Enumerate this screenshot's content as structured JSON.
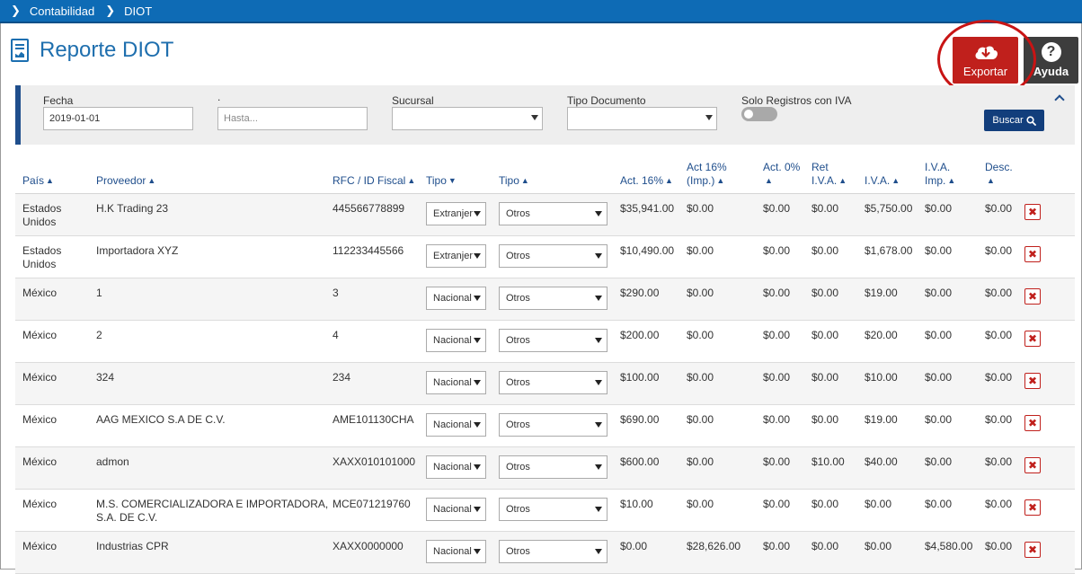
{
  "breadcrumb": [
    "Contabilidad",
    "DIOT"
  ],
  "page_title": "Reporte DIOT",
  "actions": {
    "export_label": "Exportar",
    "help_label": "Ayuda",
    "help_symbol": "?"
  },
  "filters": {
    "fecha_label": "Fecha",
    "fecha_value": "2019-01-01",
    "hasta_label": ".",
    "hasta_placeholder": "Hasta...",
    "sucursal_label": "Sucursal",
    "sucursal_value": "",
    "tipo_documento_label": "Tipo Documento",
    "tipo_documento_value": "",
    "solo_iva_label": "Solo Registros con IVA",
    "solo_iva_on": false,
    "buscar_label": "Buscar"
  },
  "columns": {
    "pais": "País",
    "proveedor": "Proveedor",
    "rfc": "RFC / ID Fiscal",
    "tipo1": "Tipo",
    "tipo2": "Tipo",
    "act16": "Act. 16%",
    "act16imp_1": "Act 16%",
    "act16imp_2": "(Imp.)",
    "act0": "Act. 0%",
    "retiva_1": "Ret",
    "retiva_2": "I.V.A.",
    "iva": "I.V.A.",
    "ivaimp_1": "I.V.A.",
    "ivaimp_2": "Imp.",
    "desc": "Desc."
  },
  "rows": [
    {
      "pais_1": "Estados",
      "pais_2": "Unidos",
      "proveedor_1": "H.K Trading 23",
      "proveedor_2": "",
      "rfc": "445566778899",
      "tipo1": "Extranjero",
      "tipo2": "Otros",
      "act16": "$35,941.00",
      "act16imp": "$0.00",
      "act0": "$0.00",
      "retiva": "$0.00",
      "iva": "$5,750.00",
      "ivaimp": "$0.00",
      "desc": "$0.00"
    },
    {
      "pais_1": "Estados",
      "pais_2": "Unidos",
      "proveedor_1": "Importadora XYZ",
      "proveedor_2": "",
      "rfc": "112233445566",
      "tipo1": "Extranjero",
      "tipo2": "Otros",
      "act16": "$10,490.00",
      "act16imp": "$0.00",
      "act0": "$0.00",
      "retiva": "$0.00",
      "iva": "$1,678.00",
      "ivaimp": "$0.00",
      "desc": "$0.00"
    },
    {
      "pais_1": "México",
      "pais_2": "",
      "proveedor_1": "1",
      "proveedor_2": "",
      "rfc": "3",
      "tipo1": "Nacional",
      "tipo2": "Otros",
      "act16": "$290.00",
      "act16imp": "$0.00",
      "act0": "$0.00",
      "retiva": "$0.00",
      "iva": "$19.00",
      "ivaimp": "$0.00",
      "desc": "$0.00"
    },
    {
      "pais_1": "México",
      "pais_2": "",
      "proveedor_1": "2",
      "proveedor_2": "",
      "rfc": "4",
      "tipo1": "Nacional",
      "tipo2": "Otros",
      "act16": "$200.00",
      "act16imp": "$0.00",
      "act0": "$0.00",
      "retiva": "$0.00",
      "iva": "$20.00",
      "ivaimp": "$0.00",
      "desc": "$0.00"
    },
    {
      "pais_1": "México",
      "pais_2": "",
      "proveedor_1": "324",
      "proveedor_2": "",
      "rfc": "234",
      "tipo1": "Nacional",
      "tipo2": "Otros",
      "act16": "$100.00",
      "act16imp": "$0.00",
      "act0": "$0.00",
      "retiva": "$0.00",
      "iva": "$10.00",
      "ivaimp": "$0.00",
      "desc": "$0.00"
    },
    {
      "pais_1": "México",
      "pais_2": "",
      "proveedor_1": "AAG MEXICO S.A DE C.V.",
      "proveedor_2": "",
      "rfc": "AME101130CHA",
      "tipo1": "Nacional",
      "tipo2": "Otros",
      "act16": "$690.00",
      "act16imp": "$0.00",
      "act0": "$0.00",
      "retiva": "$0.00",
      "iva": "$19.00",
      "ivaimp": "$0.00",
      "desc": "$0.00"
    },
    {
      "pais_1": "México",
      "pais_2": "",
      "proveedor_1": "admon",
      "proveedor_2": "",
      "rfc": "XAXX010101000",
      "tipo1": "Nacional",
      "tipo2": "Otros",
      "act16": "$600.00",
      "act16imp": "$0.00",
      "act0": "$0.00",
      "retiva": "$10.00",
      "iva": "$40.00",
      "ivaimp": "$0.00",
      "desc": "$0.00"
    },
    {
      "pais_1": "México",
      "pais_2": "",
      "proveedor_1": "M.S. COMERCIALIZADORA E IMPORTADORA,",
      "proveedor_2": "S.A. DE C.V.",
      "rfc": "MCE071219760",
      "tipo1": "Nacional",
      "tipo2": "Otros",
      "act16": "$10.00",
      "act16imp": "$0.00",
      "act0": "$0.00",
      "retiva": "$0.00",
      "iva": "$0.00",
      "ivaimp": "$0.00",
      "desc": "$0.00"
    },
    {
      "pais_1": "México",
      "pais_2": "",
      "proveedor_1": "Industrias CPR",
      "proveedor_2": "",
      "rfc": "XAXX0000000",
      "tipo1": "Nacional",
      "tipo2": "Otros",
      "act16": "$0.00",
      "act16imp": "$28,626.00",
      "act0": "$0.00",
      "retiva": "$0.00",
      "iva": "$0.00",
      "ivaimp": "$4,580.00",
      "desc": "$0.00"
    }
  ],
  "colors": {
    "topbar": "#0e6bb5",
    "accent": "#1f4e8c",
    "export": "#c0201c",
    "help": "#3d3d3d",
    "highlight_ring": "#c81414"
  }
}
